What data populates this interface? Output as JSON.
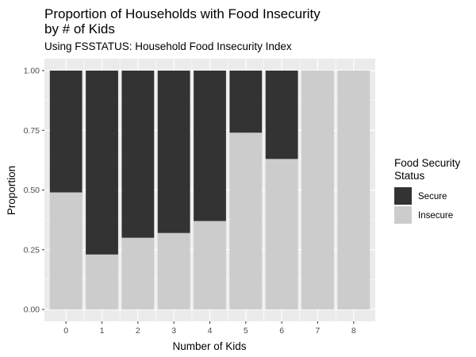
{
  "chart_data": {
    "type": "bar",
    "stacked": "fill",
    "title": "Proportion of Households with Food Insecurity\nby # of Kids",
    "subtitle": "Using FSSTATUS: Household Food Insecurity Index",
    "xlabel": "Number of Kids",
    "ylabel": "Proportion",
    "categories": [
      "0",
      "1",
      "2",
      "3",
      "4",
      "5",
      "6",
      "7",
      "8"
    ],
    "ylim": [
      0,
      1
    ],
    "yticks": [
      "0.00",
      "0.25",
      "0.50",
      "0.75",
      "1.00"
    ],
    "grid": true,
    "legend": {
      "title": "Food Security\nStatus",
      "position": "right"
    },
    "series": [
      {
        "name": "Secure",
        "color": "#333333",
        "values": [
          0.51,
          0.77,
          0.7,
          0.68,
          0.63,
          0.26,
          0.37,
          0.0,
          0.0
        ]
      },
      {
        "name": "Insecure",
        "color": "#cccccc",
        "values": [
          0.49,
          0.23,
          0.3,
          0.32,
          0.37,
          0.74,
          0.63,
          1.0,
          1.0
        ]
      }
    ],
    "colors": {
      "panel": "#ebebeb",
      "gridline": "#ffffff"
    }
  }
}
